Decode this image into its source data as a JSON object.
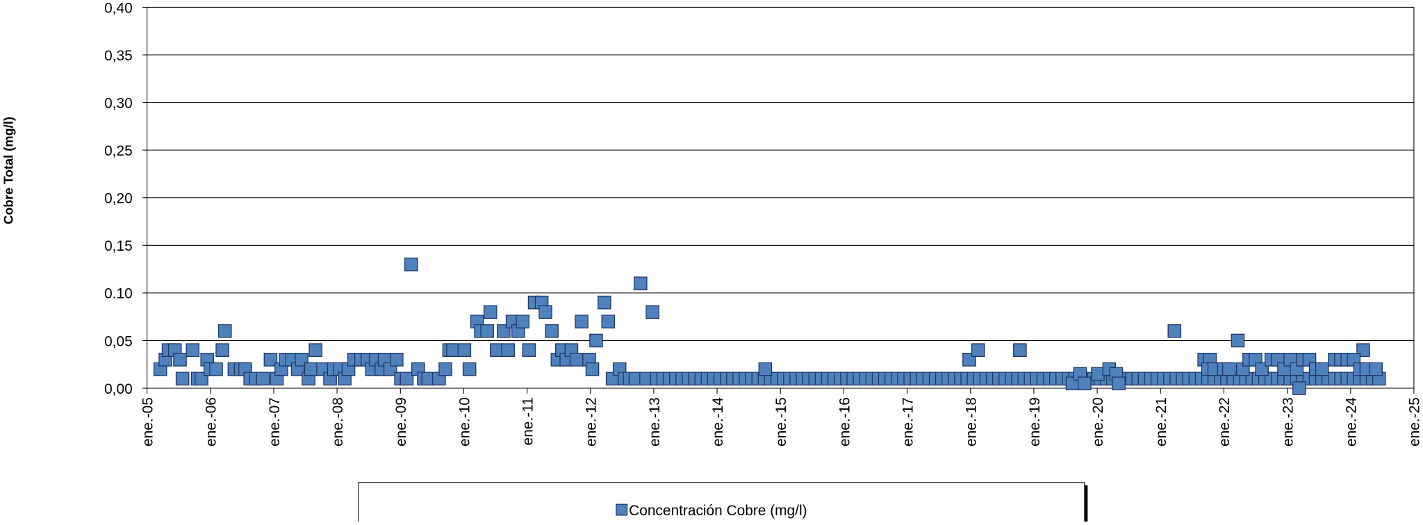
{
  "chart_data": {
    "type": "scatter",
    "y_label": "Cobre Total (mg/l)",
    "xlim": [
      2005,
      2025
    ],
    "xticks": [
      {
        "value": 2005,
        "label": "ene.-05"
      },
      {
        "value": 2006,
        "label": "ene.-06"
      },
      {
        "value": 2007,
        "label": "ene.-07"
      },
      {
        "value": 2008,
        "label": "ene.-08"
      },
      {
        "value": 2009,
        "label": "ene.-09"
      },
      {
        "value": 2010,
        "label": "ene.-10"
      },
      {
        "value": 2011,
        "label": "ene.-11"
      },
      {
        "value": 2012,
        "label": "ene.-12"
      },
      {
        "value": 2013,
        "label": "ene.-13"
      },
      {
        "value": 2014,
        "label": "ene.-14"
      },
      {
        "value": 2015,
        "label": "ene.-15"
      },
      {
        "value": 2016,
        "label": "ene.-16"
      },
      {
        "value": 2017,
        "label": "ene.-17"
      },
      {
        "value": 2018,
        "label": "ene.-18"
      },
      {
        "value": 2019,
        "label": "ene.-19"
      },
      {
        "value": 2020,
        "label": "ene.-20"
      },
      {
        "value": 2021,
        "label": "ene.-21"
      },
      {
        "value": 2022,
        "label": "ene.-22"
      },
      {
        "value": 2023,
        "label": "ene.-23"
      },
      {
        "value": 2024,
        "label": "ene.-24"
      },
      {
        "value": 2025,
        "label": "ene.-25"
      }
    ],
    "ylim": [
      0,
      0.4
    ],
    "yticks": [
      {
        "value": 0,
        "label": "0,00"
      },
      {
        "value": 0.05,
        "label": "0,05"
      },
      {
        "value": 0.1,
        "label": "0.10"
      },
      {
        "value": 0.15,
        "label": "0,15"
      },
      {
        "value": 0.2,
        "label": "0,20"
      },
      {
        "value": 0.25,
        "label": "0,25"
      },
      {
        "value": 0.3,
        "label": "0,30"
      },
      {
        "value": 0.35,
        "label": "0,35"
      },
      {
        "value": 0.4,
        "label": "0,40"
      }
    ],
    "grid": true,
    "legend": "bottom",
    "series": [
      {
        "name": "Concentración Cobre (mg/l)",
        "color": "#4f81bd",
        "x": [
          2005.21,
          2005.29,
          2005.34,
          2005.44,
          2005.52,
          2005.56,
          2005.72,
          2005.8,
          2005.86,
          2005.95,
          2006.0,
          2006.09,
          2006.19,
          2006.23,
          2006.38,
          2006.48,
          2006.55,
          2006.63,
          2006.72,
          2006.83,
          2006.95,
          2007.05,
          2007.12,
          2007.19,
          2007.29,
          2007.38,
          2007.44,
          2007.55,
          2007.59,
          2007.66,
          2007.78,
          2007.89,
          2007.95,
          2008.04,
          2008.12,
          2008.18,
          2008.27,
          2008.38,
          2008.48,
          2008.55,
          2008.61,
          2008.7,
          2008.75,
          2008.84,
          2008.94,
          2009.01,
          2009.1,
          2009.17,
          2009.28,
          2009.37,
          2009.44,
          2009.61,
          2009.71,
          2009.77,
          2009.83,
          2010.01,
          2010.09,
          2010.21,
          2010.27,
          2010.37,
          2010.42,
          2010.52,
          2010.63,
          2010.7,
          2010.77,
          2010.86,
          2010.93,
          2011.03,
          2011.12,
          2011.23,
          2011.29,
          2011.39,
          2011.48,
          2011.55,
          2011.62,
          2011.7,
          2011.78,
          2011.86,
          2011.98,
          2012.03,
          2012.09,
          2012.22,
          2012.28,
          2012.35,
          2012.46,
          2012.54,
          2012.62,
          2012.71,
          2012.79,
          2012.88,
          2012.98,
          2013.05,
          2013.15,
          2013.25,
          2013.35,
          2013.45,
          2013.55,
          2013.65,
          2013.75,
          2013.85,
          2013.95,
          2014.05,
          2014.15,
          2014.25,
          2014.35,
          2014.45,
          2014.55,
          2014.65,
          2014.75,
          2014.85,
          2014.95,
          2015.05,
          2015.15,
          2015.25,
          2015.35,
          2015.45,
          2015.55,
          2015.65,
          2015.75,
          2015.85,
          2015.95,
          2016.05,
          2016.15,
          2016.25,
          2016.35,
          2016.45,
          2016.55,
          2016.65,
          2016.75,
          2016.85,
          2016.95,
          2017.05,
          2017.15,
          2017.25,
          2017.35,
          2017.45,
          2017.55,
          2017.65,
          2017.75,
          2017.85,
          2017.95,
          2018.05,
          2018.15,
          2018.25,
          2018.35,
          2018.45,
          2018.55,
          2018.65,
          2018.75,
          2018.85,
          2018.95,
          2019.05,
          2019.15,
          2019.25,
          2019.35,
          2019.45,
          2019.55,
          2019.65,
          2019.75,
          2019.85,
          2019.95,
          2020.05,
          2020.15,
          2020.25,
          2020.35,
          2020.45,
          2020.55,
          2020.65,
          2020.75,
          2020.85,
          2020.95,
          2021.05,
          2021.15,
          2021.25,
          2021.35,
          2021.45,
          2021.55,
          2021.65,
          2021.75,
          2021.85,
          2021.95,
          2022.05,
          2022.15,
          2022.25,
          2022.35,
          2022.45,
          2022.55,
          2022.65,
          2022.75,
          2022.85,
          2022.95,
          2023.05,
          2023.15,
          2023.25,
          2023.35,
          2023.45,
          2023.55,
          2023.65,
          2023.75,
          2023.85,
          2023.95,
          2024.05,
          2024.15,
          2024.25,
          2024.35,
          2024.45,
          2014.76,
          2017.98,
          2018.12,
          2018.78,
          2019.61,
          2019.73,
          2019.8,
          2020.01,
          2020.19,
          2020.3,
          2020.34,
          2021.22,
          2021.69,
          2021.78,
          2022.22,
          2023.19,
          2024.2,
          2021.75,
          2021.85,
          2022.0,
          2022.08,
          2022.3,
          2022.4,
          2022.5,
          2022.6,
          2022.75,
          2022.85,
          2022.95,
          2023.05,
          2023.15,
          2023.25,
          2023.35,
          2023.45,
          2023.55,
          2023.75,
          2023.85,
          2023.95,
          2024.05,
          2024.15,
          2024.25,
          2024.4
        ],
        "values": [
          0.02,
          0.03,
          0.04,
          0.04,
          0.03,
          0.01,
          0.04,
          0.01,
          0.01,
          0.03,
          0.02,
          0.02,
          0.04,
          0.06,
          0.02,
          0.02,
          0.02,
          0.01,
          0.01,
          0.01,
          0.03,
          0.01,
          0.02,
          0.03,
          0.03,
          0.02,
          0.03,
          0.01,
          0.02,
          0.04,
          0.02,
          0.01,
          0.02,
          0.02,
          0.01,
          0.02,
          0.03,
          0.03,
          0.03,
          0.02,
          0.03,
          0.02,
          0.03,
          0.02,
          0.03,
          0.01,
          0.01,
          0.13,
          0.02,
          0.01,
          0.01,
          0.01,
          0.02,
          0.04,
          0.04,
          0.04,
          0.02,
          0.07,
          0.06,
          0.06,
          0.08,
          0.04,
          0.06,
          0.04,
          0.07,
          0.06,
          0.07,
          0.04,
          0.09,
          0.09,
          0.08,
          0.06,
          0.03,
          0.04,
          0.03,
          0.04,
          0.03,
          0.07,
          0.03,
          0.02,
          0.05,
          0.09,
          0.07,
          0.01,
          0.02,
          0.01,
          0.01,
          0.01,
          0.11,
          0.01,
          0.08,
          0.01,
          0.01,
          0.01,
          0.01,
          0.01,
          0.01,
          0.01,
          0.01,
          0.01,
          0.01,
          0.01,
          0.01,
          0.01,
          0.01,
          0.01,
          0.01,
          0.01,
          0.01,
          0.01,
          0.01,
          0.01,
          0.01,
          0.01,
          0.01,
          0.01,
          0.01,
          0.01,
          0.01,
          0.01,
          0.01,
          0.01,
          0.01,
          0.01,
          0.01,
          0.01,
          0.01,
          0.01,
          0.01,
          0.01,
          0.01,
          0.01,
          0.01,
          0.01,
          0.01,
          0.01,
          0.01,
          0.01,
          0.01,
          0.01,
          0.01,
          0.01,
          0.01,
          0.01,
          0.01,
          0.01,
          0.01,
          0.01,
          0.01,
          0.01,
          0.01,
          0.01,
          0.01,
          0.01,
          0.01,
          0.01,
          0.01,
          0.01,
          0.01,
          0.01,
          0.01,
          0.01,
          0.01,
          0.01,
          0.01,
          0.01,
          0.01,
          0.01,
          0.01,
          0.01,
          0.01,
          0.01,
          0.01,
          0.01,
          0.01,
          0.01,
          0.01,
          0.01,
          0.01,
          0.01,
          0.01,
          0.01,
          0.01,
          0.01,
          0.01,
          0.01,
          0.01,
          0.01,
          0.01,
          0.01,
          0.01,
          0.01,
          0.01,
          0.01,
          0.01,
          0.01,
          0.01,
          0.01,
          0.01,
          0.01,
          0.01,
          0.01,
          0.01,
          0.01,
          0.01,
          0.01,
          0.02,
          0.03,
          0.04,
          0.04,
          0.005,
          0.015,
          0.005,
          0.015,
          0.02,
          0.015,
          0.005,
          0.06,
          0.03,
          0.03,
          0.05,
          0,
          0.04,
          0.02,
          0.02,
          0.02,
          0.02,
          0.02,
          0.03,
          0.03,
          0.02,
          0.03,
          0.03,
          0.02,
          0.03,
          0.02,
          0.03,
          0.03,
          0.02,
          0.02,
          0.03,
          0.03,
          0.03,
          0.03,
          0.02,
          0.02,
          0.02
        ]
      }
    ]
  }
}
